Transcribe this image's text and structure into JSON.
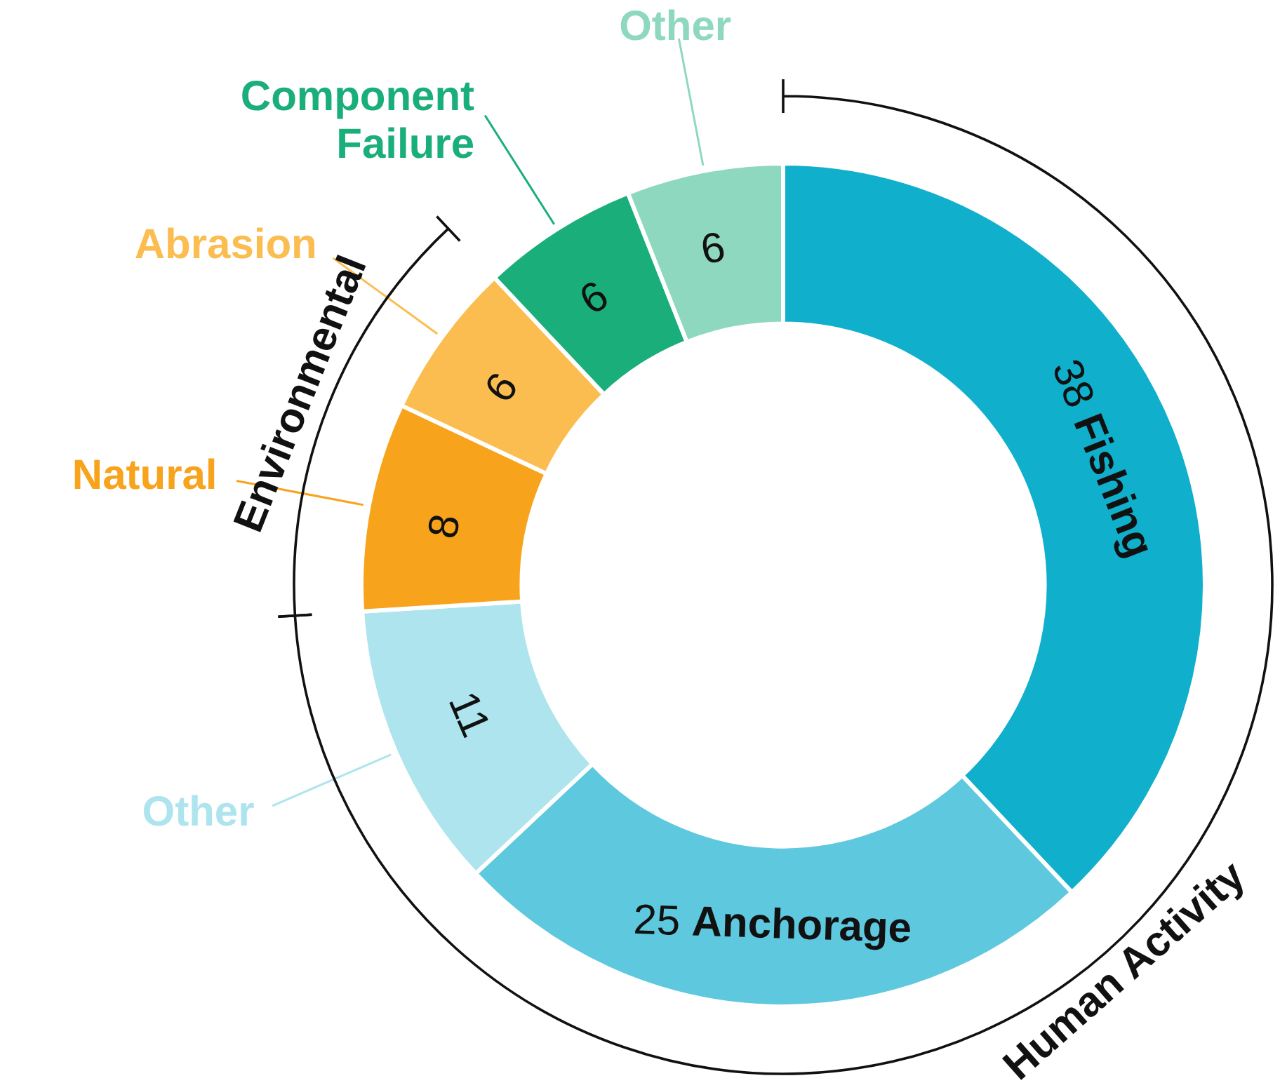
{
  "chart_data": {
    "type": "donut",
    "categories": [
      "Fishing",
      "Anchorage",
      "Other",
      "Natural",
      "Abrasion",
      "Component Failure",
      "Other"
    ],
    "values": [
      38,
      25,
      11,
      8,
      6,
      6,
      6
    ],
    "colors": [
      "#10afcc",
      "#5ec8df",
      "#aee4ee",
      "#f8a31c",
      "#fbbd4f",
      "#1aae7a",
      "#8fd8c0"
    ],
    "annotations": [
      "Human Activity",
      "Environmental"
    ],
    "data_labels": true
  }
}
